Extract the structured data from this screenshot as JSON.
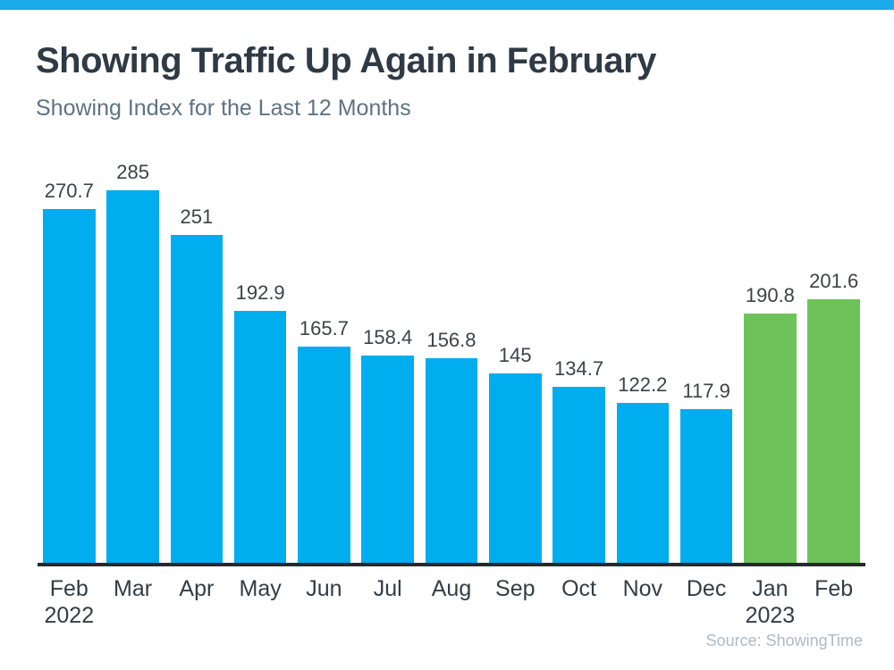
{
  "page": {
    "title": "Showing Traffic Up Again in February",
    "subtitle": "Showing Index for the Last 12 Months",
    "source": "Source: ShowingTime"
  },
  "colors": {
    "accent_strip": "#1BAAE9",
    "bar_blue": "#00ADEE",
    "bar_green": "#6EC25A",
    "axis": "#24292E",
    "title_text": "#2E3A45",
    "subtitle_text": "#5D7382",
    "value_text": "#3D4248",
    "month_text": "#333D45",
    "source_text": "#AEBAC4"
  },
  "chart_data": {
    "type": "bar",
    "title": "Showing Traffic Up Again in February",
    "subtitle": "Showing Index for the Last 12 Months",
    "categories": [
      {
        "month": "Feb",
        "year": "2022"
      },
      {
        "month": "Mar",
        "year": ""
      },
      {
        "month": "Apr",
        "year": ""
      },
      {
        "month": "May",
        "year": ""
      },
      {
        "month": "Jun",
        "year": ""
      },
      {
        "month": "Jul",
        "year": ""
      },
      {
        "month": "Aug",
        "year": ""
      },
      {
        "month": "Sep",
        "year": ""
      },
      {
        "month": "Oct",
        "year": ""
      },
      {
        "month": "Nov",
        "year": ""
      },
      {
        "month": "Dec",
        "year": ""
      },
      {
        "month": "Jan",
        "year": "2023"
      },
      {
        "month": "Feb",
        "year": ""
      }
    ],
    "values": [
      270.7,
      285,
      251,
      192.9,
      165.7,
      158.4,
      156.8,
      145,
      134.7,
      122.2,
      117.9,
      190.8,
      201.6
    ],
    "value_labels": [
      "270.7",
      "285",
      "251",
      "192.9",
      "165.7",
      "158.4",
      "156.8",
      "145",
      "134.7",
      "122.2",
      "117.9",
      "190.8",
      "201.6"
    ],
    "bar_color_keys": [
      "blue",
      "blue",
      "blue",
      "blue",
      "blue",
      "blue",
      "blue",
      "blue",
      "blue",
      "blue",
      "blue",
      "green",
      "green"
    ],
    "xlabel": "",
    "ylabel": "",
    "ylim": [
      0,
      300
    ],
    "grid": false,
    "legend": false,
    "source": "Source: ShowingTime"
  }
}
